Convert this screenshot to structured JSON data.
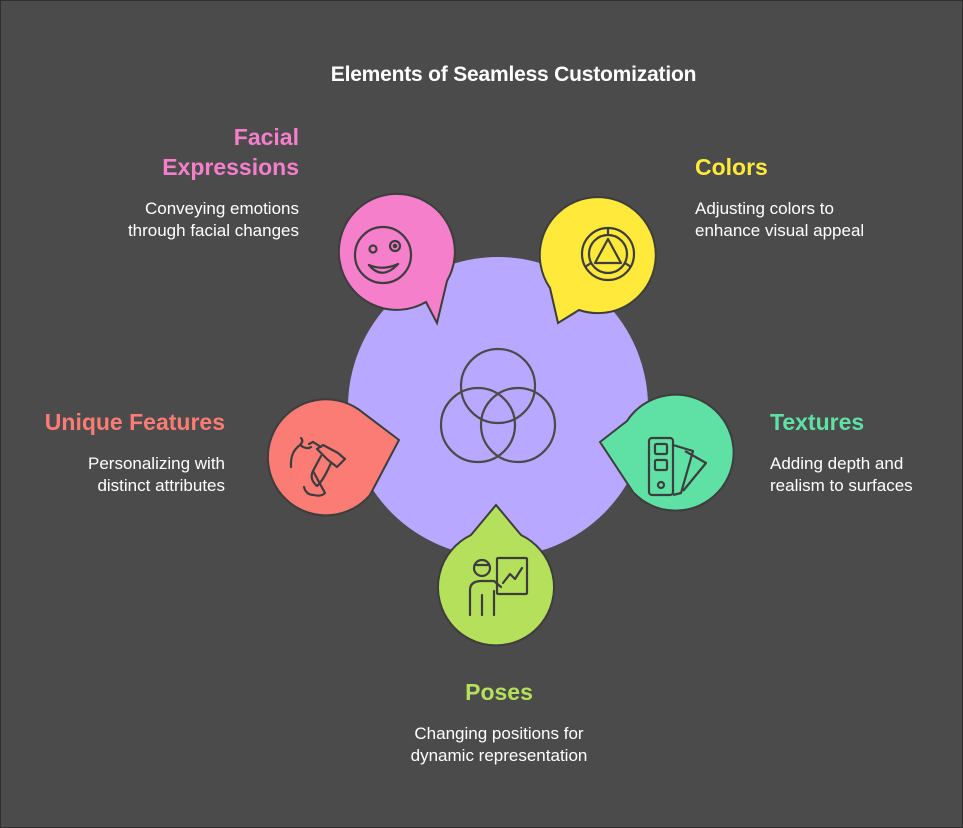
{
  "title": "Elements of Seamless Customization",
  "colors": {
    "background": "#4b4b4b",
    "hub": "#b9a8ff",
    "facial": "#f57fca",
    "colors": "#ffe93b",
    "textures": "#5fe0a5",
    "poses": "#b5e05c",
    "unique": "#fb7c75",
    "outline": "#3d3d3d"
  },
  "center_icon": "venn-circles-icon",
  "elements": [
    {
      "id": "facial",
      "label": "Facial Expressions",
      "label_lines": [
        "Facial",
        "Expressions"
      ],
      "desc_lines": [
        "Conveying emotions",
        "through facial changes"
      ],
      "icon": "smiley-face-icon",
      "color": "#f57fca"
    },
    {
      "id": "colors",
      "label": "Colors",
      "label_lines": [
        "Colors"
      ],
      "desc_lines": [
        "Adjusting colors to",
        "enhance visual appeal"
      ],
      "icon": "color-wheel-triangle-icon",
      "color": "#ffe93b"
    },
    {
      "id": "textures",
      "label": "Textures",
      "label_lines": [
        "Textures"
      ],
      "desc_lines": [
        "Adding depth and",
        "realism to surfaces"
      ],
      "icon": "swatch-fan-icon",
      "color": "#5fe0a5"
    },
    {
      "id": "poses",
      "label": "Poses",
      "label_lines": [
        "Poses"
      ],
      "desc_lines": [
        "Changing positions for",
        "dynamic representation"
      ],
      "icon": "presenter-chart-icon",
      "color": "#b5e05c"
    },
    {
      "id": "unique",
      "label": "Unique Features",
      "label_lines": [
        "Unique Features"
      ],
      "desc_lines": [
        "Personalizing with",
        "distinct attributes"
      ],
      "icon": "brush-stroke-icon",
      "color": "#fb7c75"
    }
  ]
}
